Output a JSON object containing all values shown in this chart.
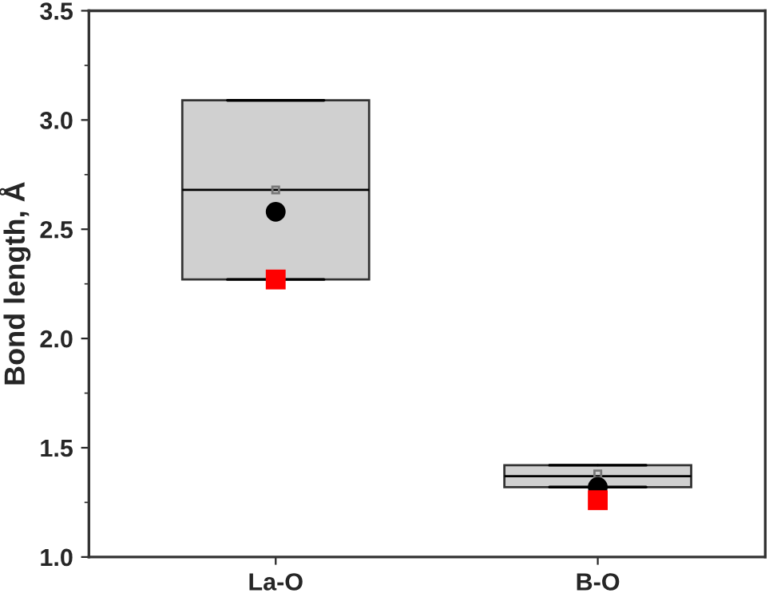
{
  "chart_data": {
    "type": "box",
    "ylabel": "Bond length, Å",
    "categories": [
      "La-O",
      "B-O"
    ],
    "ylim": [
      1.0,
      3.5
    ],
    "yticks": [
      {
        "value": 1,
        "label": "1.0"
      },
      1.5,
      {
        "value": 2,
        "label": "2.0"
      },
      2.5,
      {
        "value": 3,
        "label": "3.0"
      },
      3.5
    ],
    "boxes": [
      {
        "low": 2.27,
        "q1": 2.27,
        "median": 2.68,
        "q3": 3.09,
        "high": 3.09,
        "mean": 2.68
      },
      {
        "low": 1.32,
        "q1": 1.32,
        "median": 1.37,
        "q3": 1.42,
        "high": 1.42,
        "mean": 1.38
      }
    ],
    "color": "#d0d0d0",
    "series": [
      {
        "type": "scatter",
        "x": [
          "La-O",
          "B-O"
        ],
        "values": [
          2.58,
          1.32
        ],
        "color": "#000000",
        "marker": "circle"
      },
      {
        "type": "scatter",
        "x": [
          "La-O",
          "B-O"
        ],
        "values": [
          2.27,
          1.26
        ],
        "color": "#ff0000",
        "marker": "square"
      }
    ],
    "grid": false
  }
}
